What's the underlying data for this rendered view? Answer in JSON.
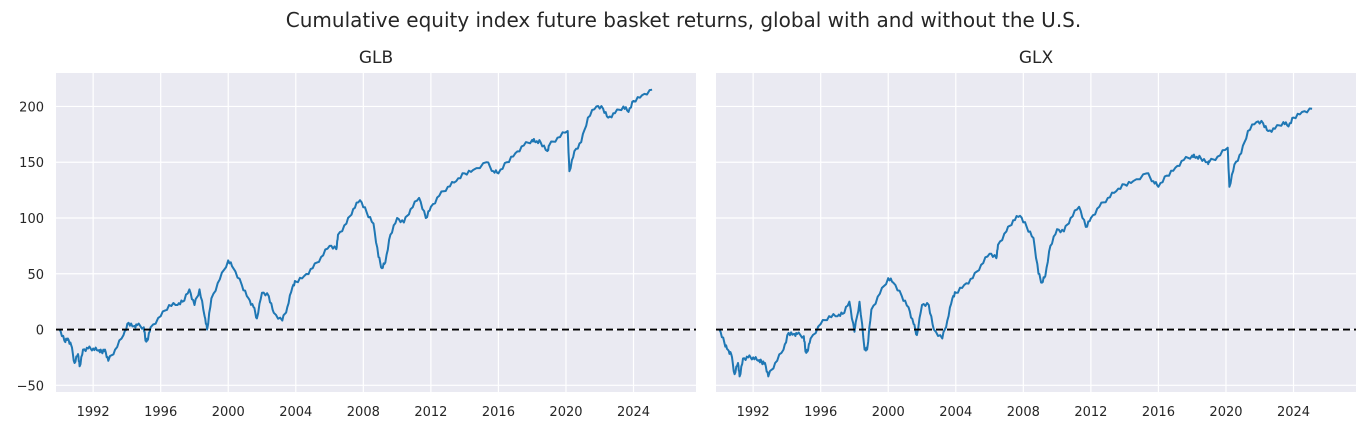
{
  "suptitle": "Cumulative equity index future basket returns, global with and without the U.S.",
  "colors": {
    "line": "#1f77b4",
    "axes_bg": "#eaeaf2",
    "grid": "#ffffff",
    "zero_line": "#000000"
  },
  "chart_data": [
    {
      "type": "line",
      "title": "GLB",
      "xlabel": "",
      "ylabel": "",
      "x_ticks": [
        1992,
        1996,
        2000,
        2004,
        2008,
        2012,
        2016,
        2020,
        2024
      ],
      "y_ticks": [
        -50,
        0,
        50,
        100,
        150,
        200
      ],
      "xlim": [
        1989.8,
        2027.7
      ],
      "ylim": [
        -56,
        230
      ],
      "grid": true,
      "hline": {
        "y": 0,
        "style": "dashed",
        "color": "#000000"
      },
      "series": [
        {
          "name": "GLB",
          "x": [
            1990.0,
            1990.3,
            1990.5,
            1990.7,
            1990.9,
            1991.1,
            1991.2,
            1991.4,
            1991.7,
            1992.0,
            1992.3,
            1992.5,
            1992.7,
            1992.9,
            1993.3,
            1993.8,
            1994.1,
            1994.4,
            1994.6,
            1995.0,
            1995.1,
            1995.2,
            1995.4,
            1996.0,
            1996.5,
            1997.0,
            1997.3,
            1997.7,
            1998.0,
            1998.3,
            1998.6,
            1998.75,
            1999.0,
            1999.5,
            2000.0,
            2000.3,
            2000.8,
            2001.2,
            2001.5,
            2001.7,
            2002.0,
            2002.4,
            2002.7,
            2003.2,
            2003.5,
            2003.8,
            2004.0,
            2004.5,
            2005.0,
            2005.5,
            2006.0,
            2006.4,
            2006.5,
            2007.0,
            2007.4,
            2007.8,
            2008.2,
            2008.6,
            2008.9,
            2009.1,
            2009.3,
            2009.6,
            2010.0,
            2010.4,
            2010.8,
            2011.3,
            2011.7,
            2012.0,
            2012.5,
            2013.0,
            2013.5,
            2014.0,
            2014.5,
            2015.3,
            2015.7,
            2016.0,
            2016.5,
            2017.0,
            2017.5,
            2018.0,
            2018.2,
            2018.5,
            2018.9,
            2019.0,
            2019.5,
            2020.1,
            2020.2,
            2020.5,
            2020.9,
            2021.3,
            2021.8,
            2022.2,
            2022.5,
            2022.9,
            2023.4,
            2023.7,
            2024.0,
            2024.5,
            2025.1
          ],
          "values": [
            0,
            -10,
            -8,
            -14,
            -30,
            -22,
            -33,
            -18,
            -17,
            -17,
            -19,
            -20,
            -18,
            -28,
            -18,
            -5,
            6,
            3,
            4,
            2,
            -10,
            -10,
            2,
            12,
            22,
            22,
            25,
            36,
            22,
            36,
            12,
            0,
            28,
            45,
            62,
            55,
            40,
            28,
            20,
            10,
            33,
            30,
            15,
            8,
            20,
            38,
            43,
            48,
            55,
            65,
            75,
            72,
            85,
            95,
            108,
            116,
            105,
            95,
            65,
            55,
            60,
            85,
            100,
            96,
            108,
            118,
            100,
            110,
            120,
            128,
            133,
            140,
            143,
            150,
            142,
            140,
            150,
            158,
            165,
            170,
            168,
            168,
            160,
            165,
            172,
            178,
            142,
            160,
            168,
            190,
            200,
            198,
            190,
            194,
            200,
            195,
            205,
            210,
            215
          ]
        }
      ]
    },
    {
      "type": "line",
      "title": "GLX",
      "xlabel": "",
      "ylabel": "",
      "x_ticks": [
        1992,
        1996,
        2000,
        2004,
        2008,
        2012,
        2016,
        2020,
        2024
      ],
      "y_ticks": [
        -50,
        0,
        50,
        100,
        150,
        200
      ],
      "xlim": [
        1989.8,
        2027.7
      ],
      "ylim": [
        -56,
        230
      ],
      "grid": true,
      "hline": {
        "y": 0,
        "style": "dashed",
        "color": "#000000"
      },
      "series": [
        {
          "name": "GLX",
          "x": [
            1990.0,
            1990.3,
            1990.5,
            1990.7,
            1990.9,
            1991.1,
            1991.2,
            1991.4,
            1991.7,
            1992.0,
            1992.3,
            1992.5,
            1992.7,
            1992.9,
            1993.3,
            1993.8,
            1994.1,
            1994.4,
            1994.6,
            1995.0,
            1995.1,
            1995.2,
            1995.4,
            1996.0,
            1996.5,
            1997.0,
            1997.3,
            1997.7,
            1998.0,
            1998.3,
            1998.6,
            1998.75,
            1999.0,
            1999.5,
            2000.0,
            2000.3,
            2000.8,
            2001.2,
            2001.5,
            2001.7,
            2002.0,
            2002.4,
            2002.7,
            2003.2,
            2003.5,
            2003.8,
            2004.0,
            2004.5,
            2005.0,
            2005.5,
            2006.0,
            2006.4,
            2006.5,
            2007.0,
            2007.4,
            2007.8,
            2008.2,
            2008.6,
            2008.9,
            2009.1,
            2009.3,
            2009.6,
            2010.0,
            2010.4,
            2010.8,
            2011.3,
            2011.7,
            2012.0,
            2012.5,
            2013.0,
            2013.5,
            2014.0,
            2014.5,
            2015.3,
            2015.7,
            2016.0,
            2016.5,
            2017.0,
            2017.5,
            2018.0,
            2018.2,
            2018.5,
            2018.9,
            2019.0,
            2019.5,
            2020.1,
            2020.2,
            2020.5,
            2020.9,
            2021.3,
            2021.8,
            2022.2,
            2022.5,
            2022.9,
            2023.4,
            2023.7,
            2024.0,
            2024.5,
            2025.1
          ],
          "values": [
            0,
            -12,
            -18,
            -22,
            -40,
            -30,
            -42,
            -26,
            -25,
            -25,
            -28,
            -29,
            -30,
            -42,
            -30,
            -18,
            -3,
            -4,
            -4,
            -6,
            -20,
            -20,
            -8,
            5,
            12,
            12,
            14,
            25,
            -2,
            25,
            -18,
            -18,
            18,
            32,
            46,
            42,
            30,
            20,
            5,
            -5,
            22,
            22,
            0,
            -8,
            8,
            28,
            33,
            40,
            46,
            58,
            68,
            64,
            76,
            88,
            98,
            102,
            92,
            82,
            50,
            42,
            48,
            75,
            90,
            88,
            100,
            110,
            92,
            100,
            110,
            118,
            124,
            130,
            133,
            140,
            133,
            128,
            138,
            145,
            152,
            156,
            154,
            154,
            150,
            150,
            155,
            163,
            128,
            148,
            158,
            178,
            186,
            185,
            178,
            180,
            186,
            182,
            190,
            195,
            198
          ]
        }
      ]
    }
  ]
}
